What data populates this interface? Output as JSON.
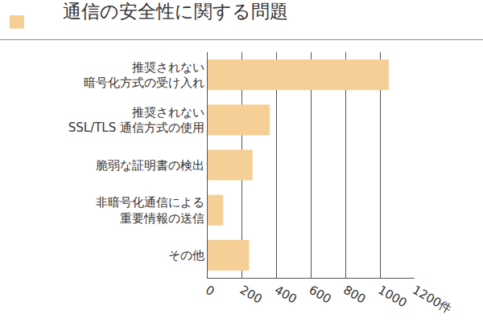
{
  "chart_data": {
    "type": "bar",
    "title": "通信の安全性に関する問題",
    "orientation": "horizontal",
    "categories": [
      "推奨されない\n暗号化方式の受け入れ",
      "推奨されない\nSSL/TLS 通信方式の使用",
      "脆弱な証明書の検出",
      "非暗号化通信による\n重要情報の送信",
      "その他"
    ],
    "values": [
      1050,
      360,
      260,
      90,
      240
    ],
    "color": "#f5cf95",
    "xlim": [
      0,
      1200
    ],
    "xticks": [
      0,
      200,
      400,
      600,
      800,
      1000,
      {
        "value": 1200,
        "label": "1200件"
      }
    ],
    "grid": true
  }
}
